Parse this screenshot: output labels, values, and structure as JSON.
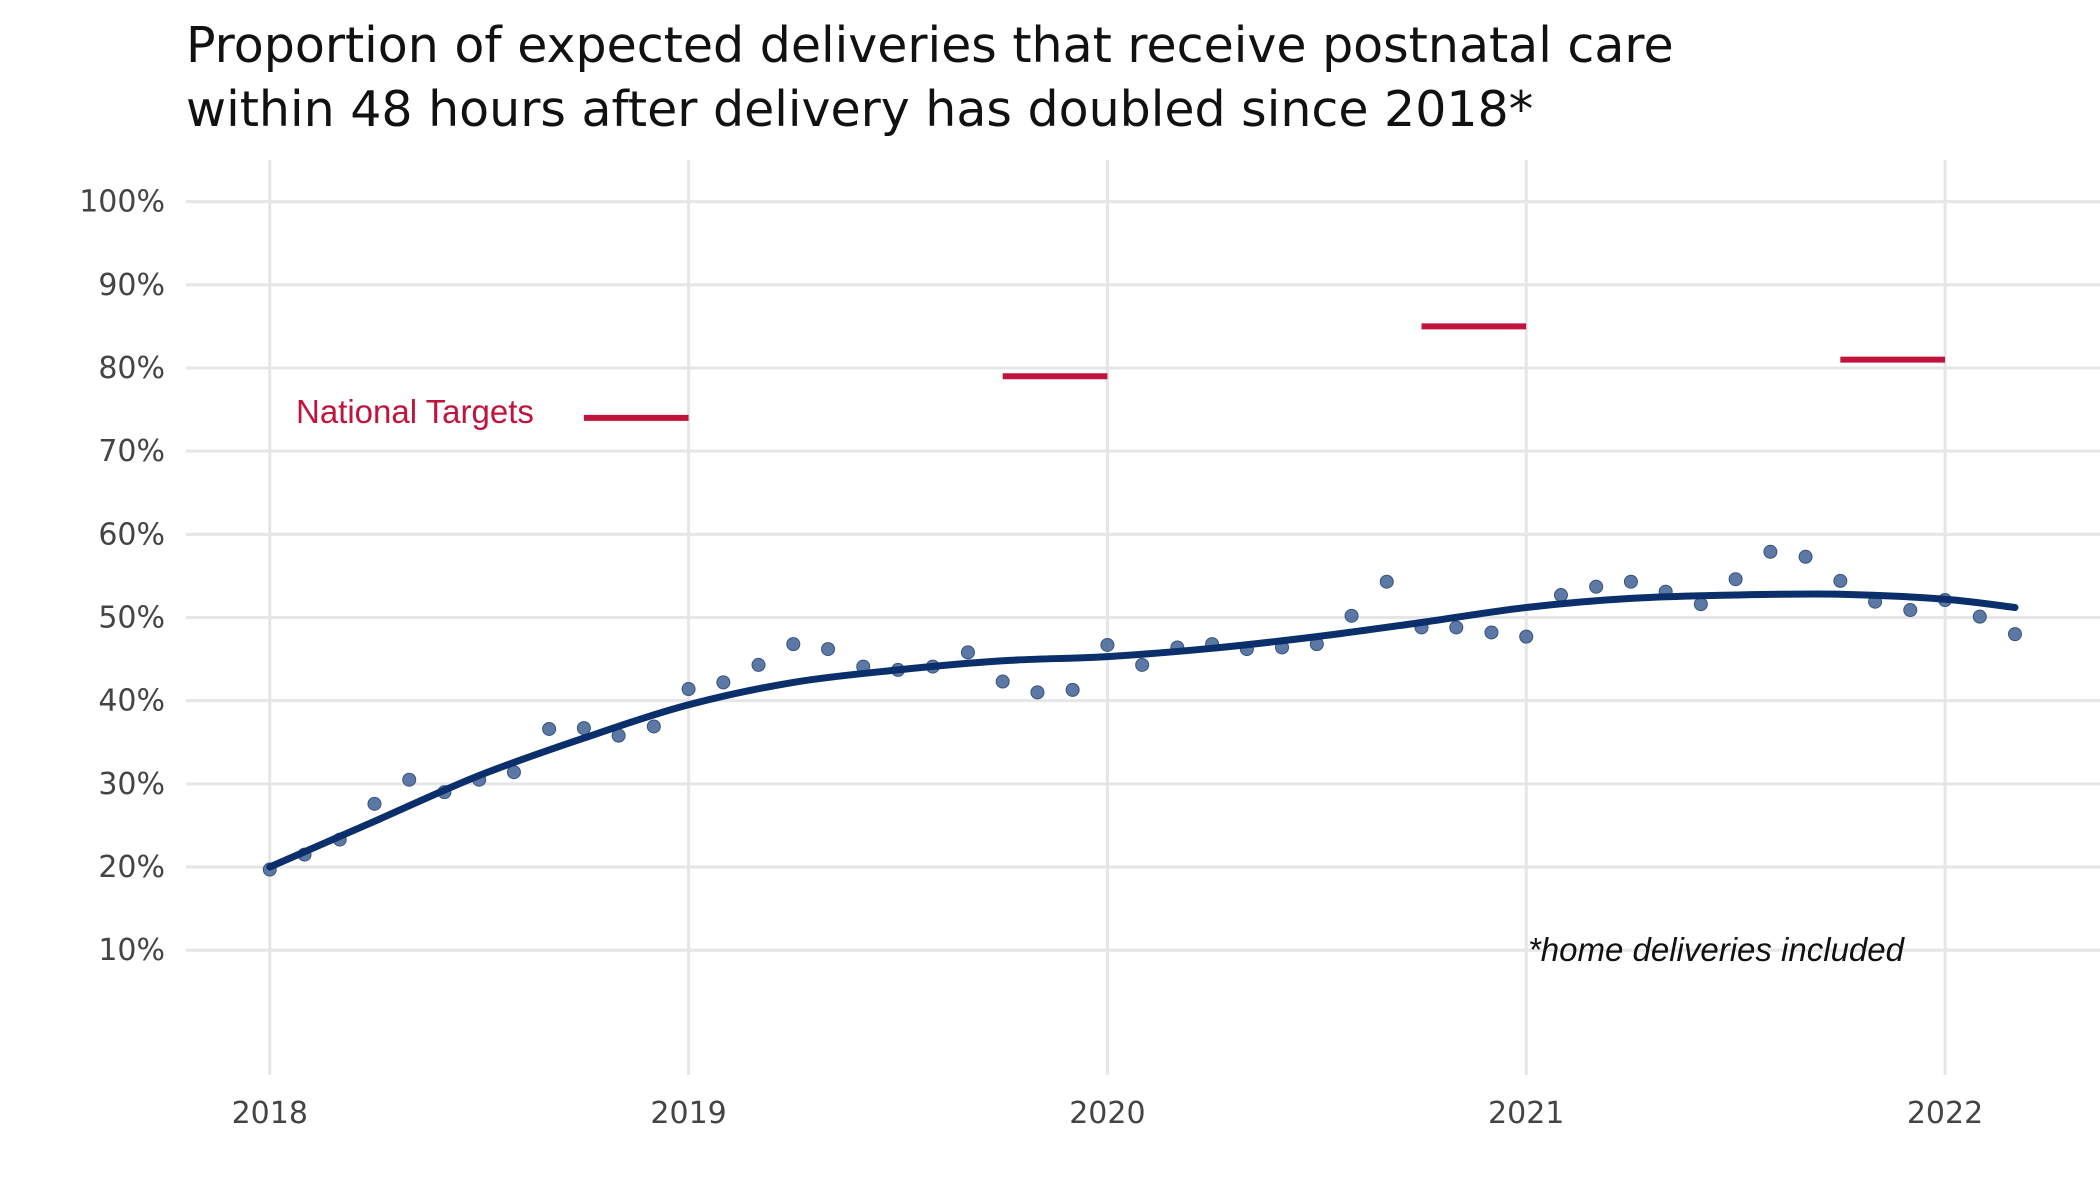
{
  "title_lines": [
    "Proportion of expected deliveries that receive postnatal care",
    "within 48 hours after delivery has doubled since 2018*"
  ],
  "footnote": "*home deliveries included",
  "target_label": "National Targets",
  "colors": {
    "points": "#4a6a9b",
    "trend": "#0b2f6b",
    "targets": "#c0143c",
    "grid": "#e6e6e6"
  },
  "chart_data": {
    "type": "scatter",
    "x_axis": {
      "ticks": [
        2018,
        2019,
        2020,
        2021,
        2022
      ],
      "tick_labels": [
        "2018",
        "2019",
        "2020",
        "2021",
        "2022"
      ],
      "range": [
        2017.8,
        2022.37
      ]
    },
    "y_axis": {
      "ticks": [
        10,
        20,
        30,
        40,
        50,
        60,
        70,
        80,
        90,
        100
      ],
      "tick_labels": [
        "10%",
        "20%",
        "30%",
        "40%",
        "50%",
        "60%",
        "70%",
        "80%",
        "90%",
        "100%"
      ],
      "range": [
        -5,
        105
      ]
    },
    "grid": true,
    "series": [
      {
        "kind": "points",
        "x": [
          2018.0,
          2018.083,
          2018.167,
          2018.25,
          2018.333,
          2018.417,
          2018.5,
          2018.583,
          2018.667,
          2018.75,
          2018.833,
          2018.917,
          2019.0,
          2019.083,
          2019.167,
          2019.25,
          2019.333,
          2019.417,
          2019.5,
          2019.583,
          2019.667,
          2019.75,
          2019.833,
          2019.917,
          2020.0,
          2020.083,
          2020.167,
          2020.25,
          2020.333,
          2020.417,
          2020.5,
          2020.583,
          2020.667,
          2020.75,
          2020.833,
          2020.917,
          2021.0,
          2021.083,
          2021.167,
          2021.25,
          2021.333,
          2021.417,
          2021.5,
          2021.583,
          2021.667,
          2021.75,
          2021.833,
          2021.917,
          2022.0,
          2022.083,
          2022.167
        ],
        "y": [
          19.7,
          21.5,
          23.3,
          27.6,
          30.5,
          29.0,
          30.5,
          31.4,
          36.6,
          36.7,
          35.8,
          36.9,
          41.4,
          42.2,
          44.3,
          46.8,
          46.2,
          44.1,
          43.7,
          44.1,
          45.8,
          42.3,
          41.0,
          41.3,
          46.7,
          44.3,
          46.4,
          46.8,
          46.2,
          46.4,
          46.8,
          50.2,
          54.3,
          48.8,
          48.8,
          48.2,
          47.7,
          52.7,
          53.7,
          54.3,
          53.1,
          51.6,
          54.6,
          57.9,
          57.3,
          54.4,
          51.9,
          50.9,
          52.1,
          50.1,
          48.0
        ]
      },
      {
        "kind": "smoothed_trend",
        "x": [
          2018.0,
          2018.25,
          2018.5,
          2018.75,
          2019.0,
          2019.25,
          2019.5,
          2019.75,
          2020.0,
          2020.25,
          2020.5,
          2020.75,
          2021.0,
          2021.25,
          2021.5,
          2021.75,
          2022.0,
          2022.167
        ],
        "y": [
          20.0,
          25.5,
          31.0,
          35.5,
          39.5,
          42.2,
          43.7,
          44.8,
          45.3,
          46.3,
          47.7,
          49.4,
          51.2,
          52.3,
          52.7,
          52.8,
          52.2,
          51.2
        ]
      }
    ],
    "national_targets": [
      {
        "x_start": 2018.75,
        "x_end": 2019.0,
        "y": 74
      },
      {
        "x_start": 2019.75,
        "x_end": 2020.0,
        "y": 79
      },
      {
        "x_start": 2020.75,
        "x_end": 2021.0,
        "y": 85
      },
      {
        "x_start": 2021.75,
        "x_end": 2022.0,
        "y": 81
      }
    ]
  }
}
